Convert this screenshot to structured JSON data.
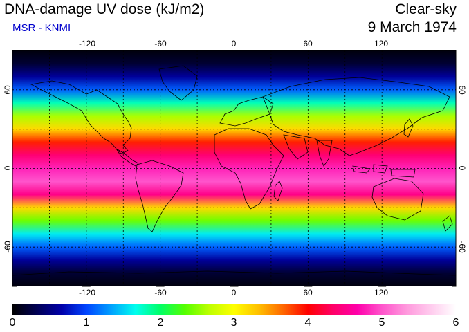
{
  "header": {
    "title": "DNA-damage UV dose (kJ/m2)",
    "subtitle": "MSR - KNMI",
    "sky_condition": "Clear-sky",
    "date": "9 March 1974"
  },
  "colors": {
    "subtitle": "#0000cc",
    "frame": "#000000",
    "grid": "#000000",
    "coast": "#000000"
  },
  "map": {
    "projection": "equirectangular",
    "lon_range": [
      -180,
      180
    ],
    "lat_range": [
      -90,
      90
    ],
    "lon_ticks": [
      "-120",
      "-60",
      "0",
      "60",
      "120"
    ],
    "lat_ticks": [
      "60",
      "0",
      "-60"
    ],
    "gridlines_lon": [
      -150,
      -120,
      -90,
      -60,
      -30,
      0,
      30,
      60,
      90,
      120,
      150
    ],
    "gridlines_lat": [
      60,
      30,
      0,
      -30,
      -60
    ]
  },
  "colorbar": {
    "range": [
      0,
      6
    ],
    "ticks": [
      "0",
      "1",
      "2",
      "3",
      "4",
      "5",
      "6"
    ],
    "colormap": [
      "#000000",
      "#000055",
      "#0000aa",
      "#0044ff",
      "#00a0ff",
      "#00ffee",
      "#00ff66",
      "#55ff00",
      "#bfff00",
      "#ffff00",
      "#ffbf00",
      "#ff6600",
      "#ff0000",
      "#ff0066",
      "#ff00aa",
      "#ff55cc",
      "#ff99dd",
      "#ffccee",
      "#ffffff"
    ]
  },
  "chart_data": {
    "type": "heatmap",
    "title": "DNA-damage UV dose (kJ/m2)",
    "value_unit": "kJ/m2",
    "zonal_profile": {
      "lat": [
        90,
        80,
        70,
        60,
        50,
        40,
        30,
        20,
        10,
        0,
        -10,
        -20,
        -30,
        -40,
        -50,
        -60,
        -70,
        -80,
        -90
      ],
      "dose": [
        0.05,
        0.2,
        0.6,
        1.1,
        1.8,
        2.6,
        3.2,
        3.9,
        4.4,
        4.8,
        5.0,
        4.5,
        3.2,
        2.4,
        1.6,
        1.1,
        0.6,
        0.2,
        0.05
      ]
    }
  }
}
